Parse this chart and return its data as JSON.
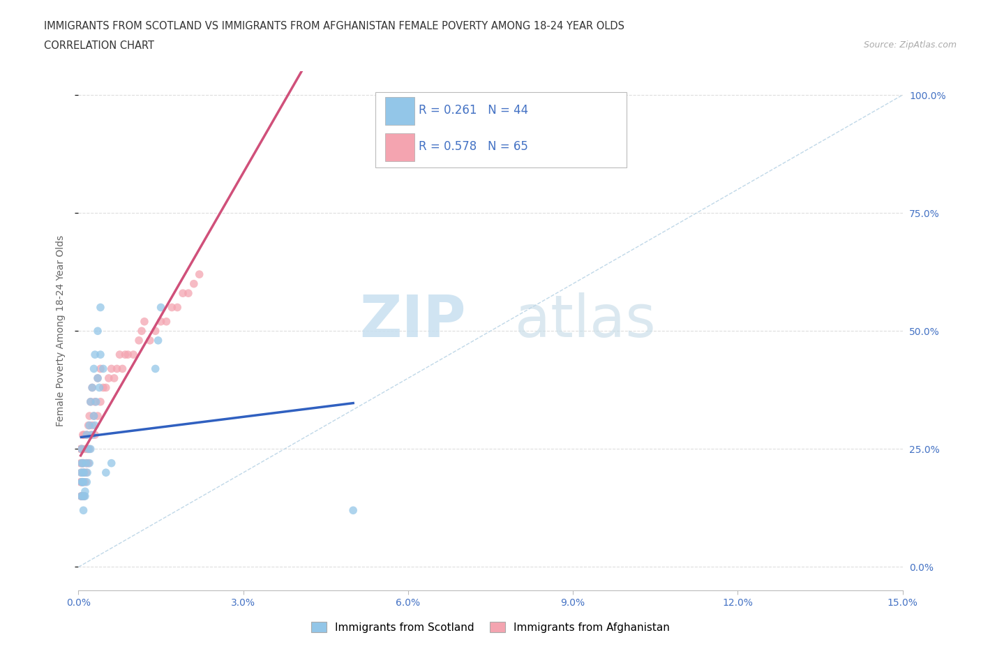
{
  "title_line1": "IMMIGRANTS FROM SCOTLAND VS IMMIGRANTS FROM AFGHANISTAN FEMALE POVERTY AMONG 18-24 YEAR OLDS",
  "title_line2": "CORRELATION CHART",
  "source_text": "Source: ZipAtlas.com",
  "ylabel": "Female Poverty Among 18-24 Year Olds",
  "xlim": [
    0.0,
    0.15
  ],
  "ylim": [
    -0.05,
    1.05
  ],
  "xticks": [
    0.0,
    0.03,
    0.06,
    0.09,
    0.12,
    0.15
  ],
  "xticklabels": [
    "0.0%",
    "3.0%",
    "6.0%",
    "9.0%",
    "12.0%",
    "15.0%"
  ],
  "ytick_positions": [
    0.0,
    0.25,
    0.5,
    0.75,
    1.0
  ],
  "ytick_labels_right": [
    "0.0%",
    "25.0%",
    "50.0%",
    "75.0%",
    "100.0%"
  ],
  "scotland_color": "#93C6E8",
  "scotland_edge": "#6aaed6",
  "afghanistan_color": "#F4A4B0",
  "afghanistan_edge": "#e07090",
  "scotland_R": 0.261,
  "scotland_N": 44,
  "afghanistan_R": 0.578,
  "afghanistan_N": 65,
  "legend_label_scotland": "Immigrants from Scotland",
  "legend_label_afghanistan": "Immigrants from Afghanistan",
  "accent_color": "#4472C4",
  "watermark_zip": "ZIP",
  "watermark_atlas": "atlas",
  "scotland_line_color": "#3060C0",
  "afghanistan_line_color": "#D0507A",
  "refline_color": "#c0d8e8",
  "scotland_scatter_x": [
    0.0008,
    0.0008,
    0.001,
    0.0012,
    0.0014,
    0.0015,
    0.0015,
    0.0016,
    0.0018,
    0.002,
    0.002,
    0.0022,
    0.0022,
    0.0025,
    0.0025,
    0.0028,
    0.0028,
    0.003,
    0.003,
    0.0032,
    0.0035,
    0.0035,
    0.0038,
    0.004,
    0.004,
    0.0045,
    0.0005,
    0.0005,
    0.0006,
    0.0006,
    0.0006,
    0.0007,
    0.0007,
    0.0008,
    0.0009,
    0.0009,
    0.001,
    0.0012,
    0.005,
    0.006,
    0.014,
    0.0145,
    0.015,
    0.05
  ],
  "scotland_scatter_y": [
    0.18,
    0.22,
    0.2,
    0.15,
    0.22,
    0.18,
    0.28,
    0.2,
    0.25,
    0.22,
    0.3,
    0.25,
    0.35,
    0.28,
    0.38,
    0.32,
    0.42,
    0.3,
    0.45,
    0.35,
    0.4,
    0.5,
    0.38,
    0.45,
    0.55,
    0.42,
    0.15,
    0.2,
    0.18,
    0.22,
    0.25,
    0.15,
    0.18,
    0.2,
    0.12,
    0.18,
    0.15,
    0.16,
    0.2,
    0.22,
    0.42,
    0.48,
    0.55,
    0.12
  ],
  "afghanistan_scatter_x": [
    0.0005,
    0.0005,
    0.0005,
    0.0006,
    0.0006,
    0.0007,
    0.0007,
    0.0008,
    0.0008,
    0.0008,
    0.0009,
    0.0009,
    0.001,
    0.001,
    0.001,
    0.0012,
    0.0012,
    0.0014,
    0.0015,
    0.0015,
    0.0016,
    0.0018,
    0.0018,
    0.002,
    0.002,
    0.0022,
    0.0022,
    0.0025,
    0.0025,
    0.0028,
    0.003,
    0.003,
    0.0035,
    0.0035,
    0.004,
    0.004,
    0.0045,
    0.005,
    0.0055,
    0.006,
    0.0065,
    0.007,
    0.0075,
    0.008,
    0.0085,
    0.009,
    0.01,
    0.011,
    0.0115,
    0.012,
    0.013,
    0.014,
    0.015,
    0.016,
    0.017,
    0.018,
    0.019,
    0.02,
    0.021,
    0.022,
    0.0004,
    0.0004,
    0.0004,
    0.0005,
    0.0005
  ],
  "afghanistan_scatter_y": [
    0.15,
    0.2,
    0.25,
    0.18,
    0.22,
    0.15,
    0.25,
    0.18,
    0.22,
    0.28,
    0.15,
    0.22,
    0.15,
    0.2,
    0.28,
    0.18,
    0.25,
    0.2,
    0.22,
    0.28,
    0.25,
    0.22,
    0.3,
    0.25,
    0.32,
    0.28,
    0.35,
    0.3,
    0.38,
    0.32,
    0.28,
    0.35,
    0.32,
    0.4,
    0.35,
    0.42,
    0.38,
    0.38,
    0.4,
    0.42,
    0.4,
    0.42,
    0.45,
    0.42,
    0.45,
    0.45,
    0.45,
    0.48,
    0.5,
    0.52,
    0.48,
    0.5,
    0.52,
    0.52,
    0.55,
    0.55,
    0.58,
    0.58,
    0.6,
    0.62,
    0.18,
    0.22,
    0.25,
    0.15,
    0.18
  ]
}
